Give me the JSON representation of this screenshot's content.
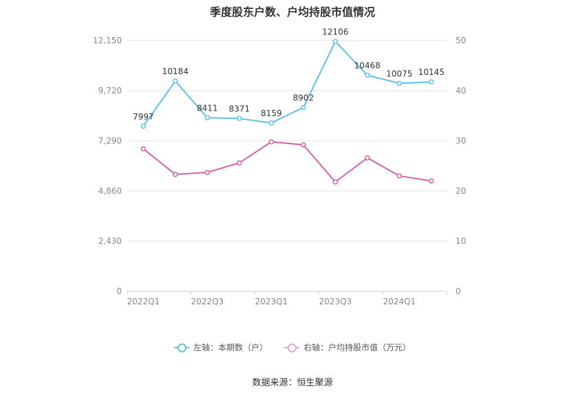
{
  "chart_data": {
    "type": "line",
    "title": "季度股东户数、户均持股市值情况",
    "x": [
      "2022Q1",
      "2022Q2",
      "2022Q3",
      "2022Q4",
      "2023Q1",
      "2023Q2",
      "2023Q3",
      "2023Q4",
      "2024Q1",
      "2024Q2"
    ],
    "x_tick_labels": [
      "2022Q1",
      "2022Q3",
      "2023Q1",
      "2023Q3",
      "2024Q1"
    ],
    "y_left": {
      "ylim": [
        0,
        12150
      ],
      "ticks": [
        "0",
        "2,430",
        "4,860",
        "7,290",
        "9,720",
        "12,150"
      ]
    },
    "y_right": {
      "ylim": [
        0,
        50
      ],
      "ticks": [
        "0",
        "10",
        "20",
        "30",
        "40",
        "50"
      ]
    },
    "series": [
      {
        "name": "左轴：本期数（户）",
        "axis": "left",
        "color": "#5bc0eb",
        "values": [
          7997,
          10184,
          8411,
          8371,
          8159,
          8902,
          12106,
          10468,
          10075,
          10145
        ],
        "labels": [
          "7997",
          "10184",
          "8411",
          "8371",
          "8159",
          "8902",
          "12106",
          "10468",
          "10075",
          "10145"
        ]
      },
      {
        "name": "右轴：户均持股市值（万元）",
        "axis": "right",
        "color": "#d063aa",
        "values": [
          28.4,
          23.3,
          23.7,
          25.6,
          29.8,
          29.2,
          21.8,
          26.6,
          23.0,
          22.0
        ]
      }
    ],
    "grid": true,
    "legend_position": "bottom"
  },
  "legend": {
    "left_label": "左轴：本期数（户）",
    "right_label": "右轴：户均持股市值（万元）",
    "left_color": "#5bc0eb",
    "right_color": "#d063aa"
  },
  "source": "数据来源：恒生聚源"
}
